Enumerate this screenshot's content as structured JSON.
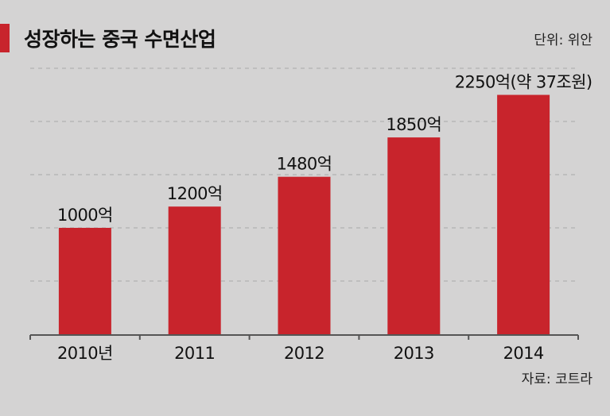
{
  "title": "성장하는 중국 수면산업",
  "unit_label": "단위: 위안",
  "source_label": "자료: 코트라",
  "colors": {
    "bar": "#c8242c",
    "accent": "#c8242c",
    "background": "#d4d3d3",
    "grid": "#a9a9a9"
  },
  "chart_data": {
    "type": "bar",
    "categories": [
      "2010년",
      "2011",
      "2012",
      "2013",
      "2014"
    ],
    "values": [
      1000,
      1200,
      1480,
      1850,
      2250
    ],
    "data_labels": [
      "1000억",
      "1200억",
      "1480억",
      "1850억",
      "2250억(약 37조원)"
    ],
    "ylim": [
      0,
      2500
    ],
    "grid": true,
    "grid_values": [
      500,
      1000,
      1500,
      2000,
      2500
    ],
    "legend": "none"
  }
}
